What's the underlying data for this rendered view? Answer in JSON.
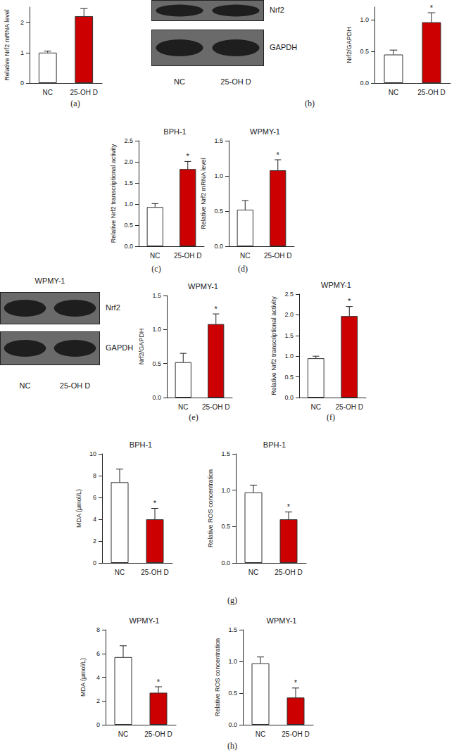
{
  "chart_data": [
    {
      "type": "bar",
      "y_label": "Relative Nrf2 mRNA level",
      "categories": [
        "NC",
        "25-OH D"
      ],
      "values": [
        1.0,
        2.2
      ],
      "errors": [
        0.05,
        0.25
      ],
      "colors": [
        "#ffffff",
        "#cc0000"
      ],
      "ylim": [
        0,
        2.5
      ],
      "yticks": [
        0,
        1,
        2
      ],
      "annotations": []
    },
    {
      "type": "bar",
      "y_label": "Nrf2/GAPDH",
      "categories": [
        "NC",
        "25-OH D"
      ],
      "values": [
        0.45,
        0.96
      ],
      "errors": [
        0.07,
        0.15
      ],
      "colors": [
        "#ffffff",
        "#cc0000"
      ],
      "ylim": [
        0,
        1.2
      ],
      "yticks": [
        {
          "value": 0,
          "label": "0.0"
        },
        {
          "value": 0.5,
          "label": "0.5"
        },
        {
          "value": 1,
          "label": "1.0"
        }
      ],
      "annotations": [
        {
          "category": "25-OH D",
          "text": "*"
        }
      ]
    },
    {
      "type": "bar",
      "title": "BPH-1",
      "y_label": "Relative Nrf2 transcriptional activity",
      "categories": [
        "NC",
        "25-OH D"
      ],
      "values": [
        0.93,
        1.83
      ],
      "errors": [
        0.08,
        0.18
      ],
      "colors": [
        "#ffffff",
        "#cc0000"
      ],
      "ylim": [
        0,
        2.5
      ],
      "yticks": [
        {
          "value": 0,
          "label": "0.0"
        },
        {
          "value": 0.5,
          "label": "0.5"
        },
        {
          "value": 1,
          "label": "1.0"
        },
        {
          "value": 1.5,
          "label": "1.5"
        },
        {
          "value": 2,
          "label": "2.0"
        },
        {
          "value": 2.5,
          "label": "2.5"
        }
      ],
      "annotations": [
        {
          "category": "25-OH D",
          "text": "*"
        }
      ]
    },
    {
      "type": "bar",
      "title": "WPMY-1",
      "y_label": "Relative Nrf2 mRNA level",
      "categories": [
        "NC",
        "25-OH D"
      ],
      "values": [
        0.52,
        1.08
      ],
      "errors": [
        0.13,
        0.15
      ],
      "colors": [
        "#ffffff",
        "#cc0000"
      ],
      "ylim": [
        0,
        1.5
      ],
      "yticks": [
        {
          "value": 0,
          "label": "0.0"
        },
        {
          "value": 0.5,
          "label": "0.5"
        },
        {
          "value": 1,
          "label": "1.0"
        },
        {
          "value": 1.5,
          "label": "1.5"
        }
      ],
      "annotations": [
        {
          "category": "25-OH D",
          "text": "*"
        }
      ]
    },
    {
      "type": "bar",
      "title": "WPMY-1",
      "y_label": "Nrf2/GAPDH",
      "categories": [
        "NC",
        "25-OH D"
      ],
      "values": [
        0.52,
        1.08
      ],
      "errors": [
        0.13,
        0.15
      ],
      "colors": [
        "#ffffff",
        "#cc0000"
      ],
      "ylim": [
        0,
        1.5
      ],
      "yticks": [
        {
          "value": 0,
          "label": "0.0"
        },
        {
          "value": 0.5,
          "label": "0.5"
        },
        {
          "value": 1,
          "label": "1.0"
        },
        {
          "value": 1.5,
          "label": "1.5"
        }
      ],
      "annotations": [
        {
          "category": "25-OH D",
          "text": "*"
        }
      ]
    },
    {
      "type": "bar",
      "title": "WPMY-1",
      "y_label": "Relative Nrf2 transcriptional activity",
      "categories": [
        "NC",
        "25-OH D"
      ],
      "values": [
        0.95,
        1.97
      ],
      "errors": [
        0.05,
        0.23
      ],
      "colors": [
        "#ffffff",
        "#cc0000"
      ],
      "ylim": [
        0,
        2.5
      ],
      "yticks": [
        {
          "value": 0,
          "label": "0.0"
        },
        {
          "value": 0.5,
          "label": "0.5"
        },
        {
          "value": 1,
          "label": "1.0"
        },
        {
          "value": 1.5,
          "label": "1.5"
        },
        {
          "value": 2,
          "label": "2.0"
        },
        {
          "value": 2.5,
          "label": "2.5"
        }
      ],
      "annotations": [
        {
          "category": "25-OH D",
          "text": "*"
        }
      ]
    },
    {
      "type": "bar",
      "title": "BPH-1",
      "y_label": "MDA (μmol/L)",
      "categories": [
        "NC",
        "25-OH D"
      ],
      "values": [
        7.4,
        4.0
      ],
      "errors": [
        1.2,
        1.0
      ],
      "colors": [
        "#ffffff",
        "#cc0000"
      ],
      "ylim": [
        0,
        10
      ],
      "yticks": [
        0,
        2,
        4,
        6,
        8,
        10
      ],
      "annotations": [
        {
          "category": "25-OH D",
          "text": "*"
        }
      ]
    },
    {
      "type": "bar",
      "title": "BPH-1",
      "y_label": "Relative ROS concentration",
      "categories": [
        "NC",
        "25-OH D"
      ],
      "values": [
        0.97,
        0.6
      ],
      "errors": [
        0.1,
        0.1
      ],
      "colors": [
        "#ffffff",
        "#cc0000"
      ],
      "ylim": [
        0,
        1.5
      ],
      "yticks": [
        {
          "value": 0,
          "label": "0.0"
        },
        {
          "value": 0.5,
          "label": "0.5"
        },
        {
          "value": 1,
          "label": "1.0"
        },
        {
          "value": 1.5,
          "label": "1.5"
        }
      ],
      "annotations": [
        {
          "category": "25-OH D",
          "text": "*"
        }
      ]
    },
    {
      "type": "bar",
      "title": "WPMY-1",
      "y_label": "MDA (μmol/L)",
      "categories": [
        "NC",
        "25-OH D"
      ],
      "values": [
        5.7,
        2.7
      ],
      "errors": [
        0.95,
        0.5
      ],
      "colors": [
        "#ffffff",
        "#cc0000"
      ],
      "ylim": [
        0,
        8
      ],
      "yticks": [
        0,
        2,
        4,
        6,
        8
      ],
      "annotations": [
        {
          "category": "25-OH D",
          "text": "*"
        }
      ]
    },
    {
      "type": "bar",
      "title": "WPMY-1",
      "y_label": "Relative ROS concentration",
      "categories": [
        "NC",
        "25-OH D"
      ],
      "values": [
        0.97,
        0.43
      ],
      "errors": [
        0.1,
        0.15
      ],
      "colors": [
        "#ffffff",
        "#cc0000"
      ],
      "ylim": [
        0,
        1.5
      ],
      "yticks": [
        {
          "value": 0,
          "label": "0.0"
        },
        {
          "value": 0.5,
          "label": "0.5"
        },
        {
          "value": 1,
          "label": "1.0"
        },
        {
          "value": 1.5,
          "label": "1.5"
        }
      ],
      "annotations": [
        {
          "category": "25-OH D",
          "text": "*"
        }
      ]
    }
  ],
  "blots": [
    {
      "bands": [
        "Nrf2",
        "GAPDH"
      ],
      "lanes": [
        "NC",
        "25-OH D"
      ]
    },
    {
      "title": "WPMY-1",
      "bands": [
        "Nrf2",
        "GAPDH"
      ],
      "lanes": [
        "NC",
        "25-OH D"
      ]
    }
  ],
  "panel_labels": [
    "(a)",
    "(b)",
    "(c)",
    "(d)",
    "(e)",
    "(f)",
    "(g)",
    "(h)"
  ]
}
